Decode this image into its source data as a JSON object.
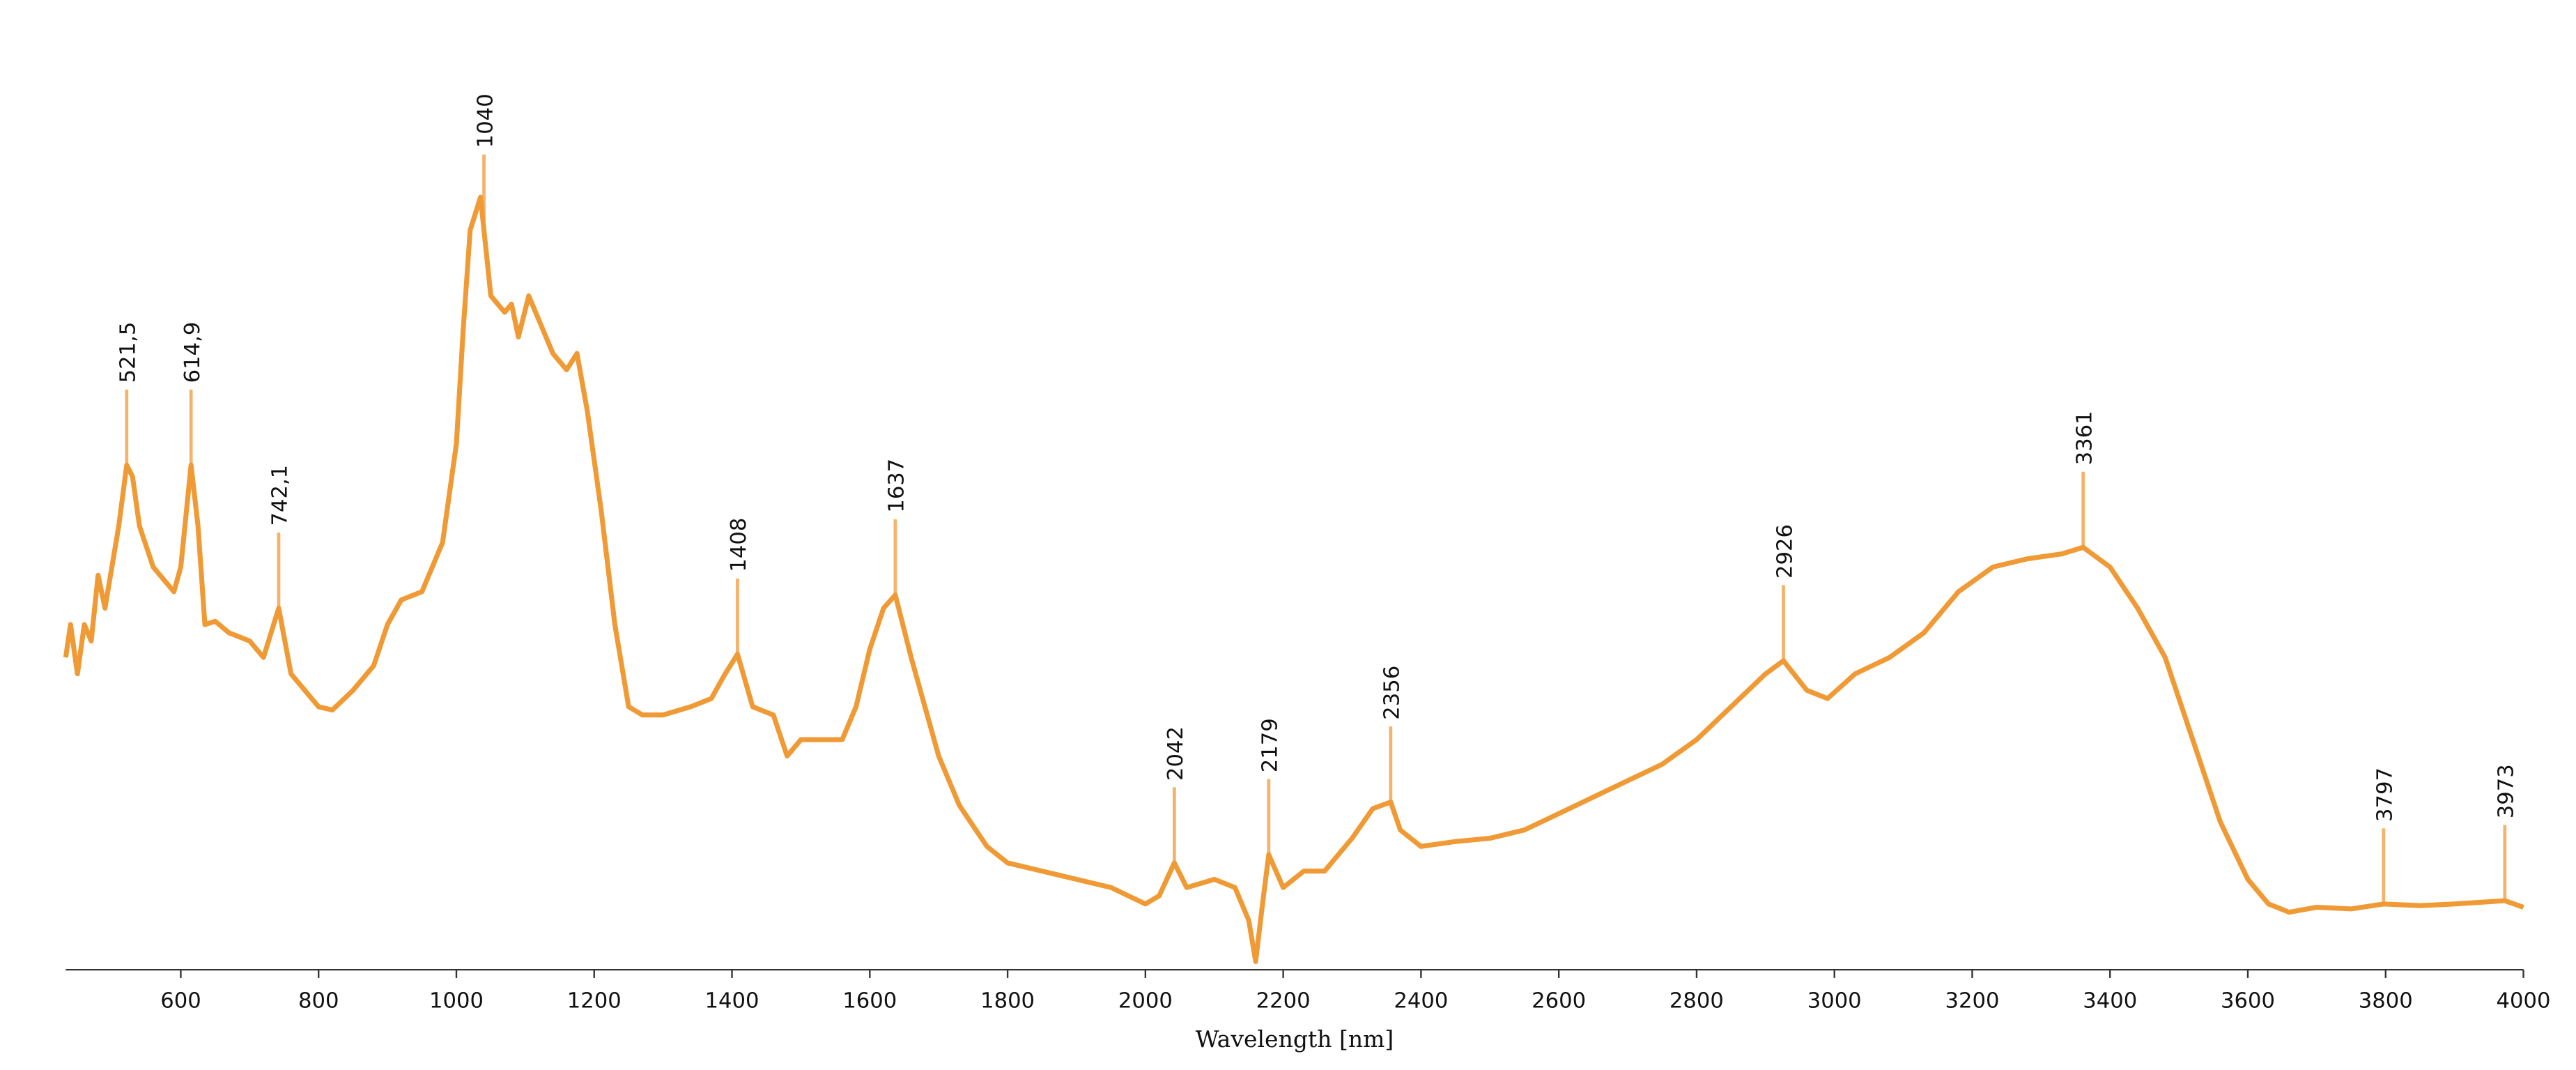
{
  "chart_data": {
    "type": "line",
    "x_label": "Wavelength [nm]",
    "xlim": [
      433,
      4000
    ],
    "ylim": [
      0,
      590
    ],
    "xticks": [
      600,
      800,
      1000,
      1200,
      1400,
      1600,
      1800,
      2000,
      2200,
      2400,
      2600,
      2800,
      3000,
      3200,
      3400,
      3600,
      3800,
      4000
    ],
    "x": [
      433,
      440,
      450,
      460,
      470,
      480,
      490,
      500,
      510,
      521.5,
      530,
      540,
      560,
      580,
      590,
      600,
      614.9,
      625,
      635,
      650,
      670,
      700,
      720,
      742.1,
      760,
      780,
      800,
      820,
      850,
      880,
      900,
      920,
      950,
      980,
      1000,
      1010,
      1020,
      1035,
      1050,
      1070,
      1080,
      1090,
      1105,
      1120,
      1140,
      1160,
      1175,
      1190,
      1210,
      1230,
      1250,
      1270,
      1300,
      1340,
      1370,
      1390,
      1408,
      1430,
      1460,
      1480,
      1500,
      1530,
      1560,
      1580,
      1600,
      1620,
      1637,
      1660,
      1700,
      1730,
      1770,
      1800,
      1850,
      1900,
      1950,
      2000,
      2020,
      2042,
      2060,
      2100,
      2130,
      2150,
      2160,
      2170,
      2179,
      2200,
      2230,
      2260,
      2300,
      2330,
      2356,
      2370,
      2400,
      2450,
      2500,
      2550,
      2600,
      2650,
      2700,
      2750,
      2800,
      2850,
      2900,
      2926,
      2960,
      2990,
      3030,
      3080,
      3130,
      3180,
      3230,
      3280,
      3330,
      3361,
      3400,
      3440,
      3480,
      3520,
      3560,
      3600,
      3630,
      3660,
      3700,
      3750,
      3797,
      3850,
      3900,
      3973,
      4000
    ],
    "series": [
      {
        "color": "#f09a35",
        "values": [
          190,
          210,
          180,
          210,
          200,
          240,
          220,
          245,
          270,
          307,
          300,
          270,
          245,
          235,
          230,
          245,
          307,
          270,
          210,
          212,
          205,
          200,
          190,
          220,
          180,
          170,
          160,
          158,
          170,
          185,
          210,
          225,
          230,
          260,
          320,
          390,
          450,
          470,
          410,
          400,
          405,
          385,
          410,
          395,
          375,
          365,
          375,
          340,
          280,
          210,
          160,
          155,
          155,
          160,
          165,
          180,
          192,
          160,
          155,
          130,
          140,
          140,
          140,
          160,
          195,
          220,
          228,
          190,
          130,
          100,
          75,
          65,
          60,
          55,
          50,
          40,
          45,
          65,
          50,
          55,
          50,
          30,
          5,
          40,
          70,
          50,
          60,
          60,
          80,
          98,
          102,
          85,
          75,
          78,
          80,
          85,
          95,
          105,
          115,
          125,
          140,
          160,
          180,
          188,
          170,
          165,
          180,
          190,
          205,
          230,
          245,
          250,
          253,
          257,
          245,
          220,
          190,
          140,
          90,
          55,
          40,
          35,
          38,
          37,
          40,
          39,
          40,
          42,
          38
        ]
      }
    ],
    "peak_color": "#f5b26b",
    "peaks": [
      {
        "value": 521.5,
        "label": "521,5"
      },
      {
        "value": 614.9,
        "label": "614,9"
      },
      {
        "value": 742.1,
        "label": "742,1"
      },
      1040,
      1408,
      1637,
      2042,
      2179,
      2356,
      2926,
      3361,
      3797,
      3973
    ]
  }
}
